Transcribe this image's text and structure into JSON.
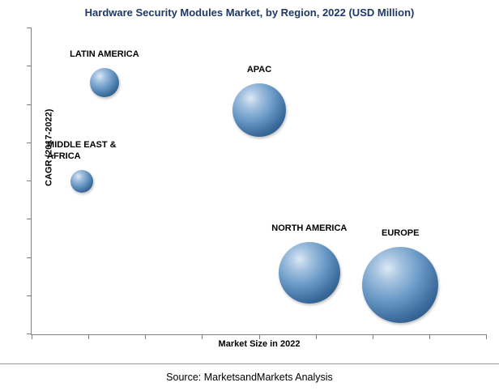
{
  "title": "Hardware Security Modules Market, by Region, 2022 (USD Million)",
  "source": "Source: MarketsandMarkets Analysis",
  "axes": {
    "x_label": "Market Size in 2022",
    "y_label": "CAGR (2017-2022)"
  },
  "chart_data": {
    "type": "scatter",
    "subtype": "bubble",
    "title": "Hardware Security Modules Market, by Region, 2022 (USD Million)",
    "xlabel": "Market Size in 2022",
    "ylabel": "CAGR (2017-2022)",
    "note": "Axes show tick marks only (no numeric labels); x/y values are normalized 0-1 estimates of position within the plot area, bubble radius in px encodes relative 2022 market size.",
    "xlim": [
      0,
      1
    ],
    "ylim": [
      0,
      1
    ],
    "grid": false,
    "legend": "none",
    "points": [
      {
        "region": "LATIN AMERICA",
        "label_lines": [
          "LATIN AMERICA"
        ],
        "x": 0.16,
        "y": 0.82,
        "radius_px": 18,
        "label_align": "center"
      },
      {
        "region": "APAC",
        "label_lines": [
          "APAC"
        ],
        "x": 0.5,
        "y": 0.73,
        "radius_px": 33,
        "label_align": "center"
      },
      {
        "region": "MIDDLE EAST & AFRICA",
        "label_lines": [
          "MIDDLE EAST &",
          "AFRICA"
        ],
        "x": 0.11,
        "y": 0.5,
        "radius_px": 14,
        "label_align": "left"
      },
      {
        "region": "NORTH AMERICA",
        "label_lines": [
          "NORTH AMERICA"
        ],
        "x": 0.61,
        "y": 0.2,
        "radius_px": 38,
        "label_align": "center"
      },
      {
        "region": "EUROPE",
        "label_lines": [
          "EUROPE"
        ],
        "x": 0.81,
        "y": 0.16,
        "radius_px": 47,
        "label_align": "center"
      }
    ],
    "layout": {
      "x_tick_count": 9,
      "y_tick_count": 9,
      "legend_position": "none"
    },
    "colors": {
      "bubble_highlight": "#dce9f6",
      "bubble_mid": "#4f81bd",
      "bubble_edge": "#1f4e79",
      "title": "#1f3864",
      "axis_line": "#808080",
      "label_text": "#000000"
    }
  }
}
